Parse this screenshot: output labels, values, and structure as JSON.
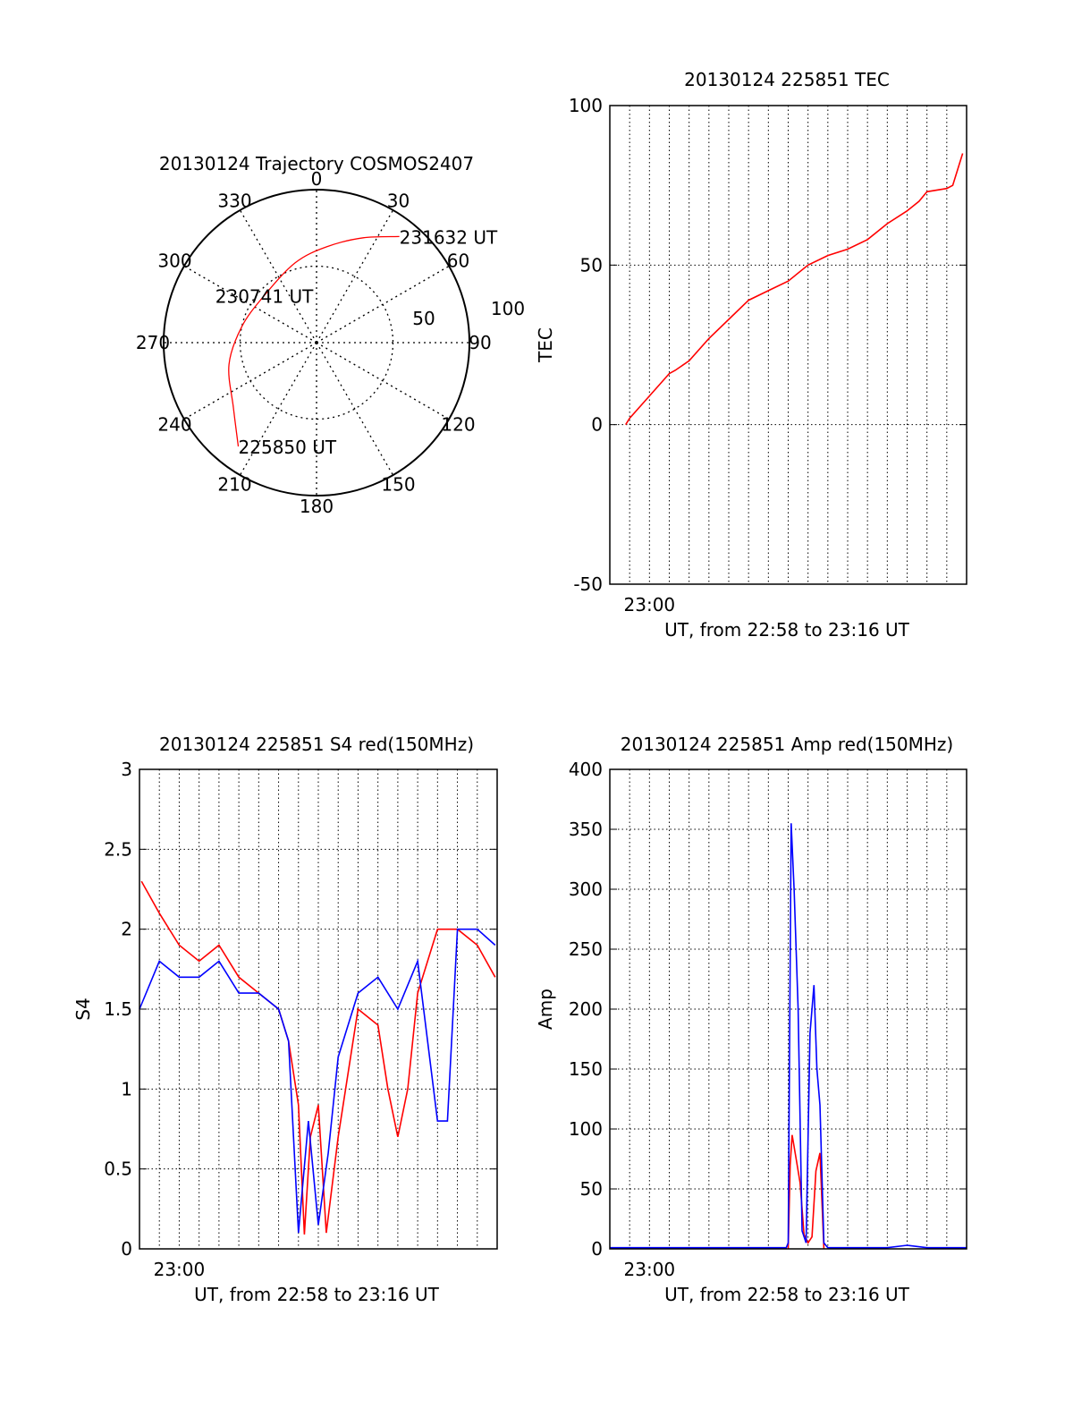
{
  "chart_data": [
    {
      "type": "polar",
      "title": "20130124 Trajectory COSMOS2407",
      "azimuth_labels": [
        "0",
        "30",
        "60",
        "90",
        "120",
        "150",
        "180",
        "210",
        "240",
        "270",
        "300",
        "330"
      ],
      "radial_labels": [
        "50",
        "100"
      ],
      "grid": true,
      "series": [
        {
          "color": "#ff0000",
          "points": [
            {
              "az": 217,
              "el": 15,
              "label": "225850 UT"
            },
            {
              "az": 232,
              "el": 31
            },
            {
              "az": 256,
              "el": 41
            },
            {
              "az": 282,
              "el": 50
            },
            {
              "az": 312,
              "el": 54,
              "label": "230741 UT"
            },
            {
              "az": 345,
              "el": 46
            },
            {
              "az": 6,
              "el": 37
            },
            {
              "az": 24,
              "el": 25
            },
            {
              "az": 38,
              "el": 12,
              "label": "231632 UT"
            }
          ]
        }
      ]
    },
    {
      "type": "line",
      "title": "20130124 225851 TEC",
      "xlabel": "UT, from 22:58 to 23:16 UT",
      "ylabel": "TEC",
      "x_tick_labels": [
        "23:00"
      ],
      "y_ticks": [
        "100",
        "50",
        "0",
        "-50"
      ],
      "ylim": [
        -50,
        100
      ],
      "grid": true,
      "series": [
        {
          "color": "#ff0000",
          "x": [
            0.8,
            1.0,
            2.0,
            3.0,
            3.3,
            4.0,
            5.0,
            6.0,
            7.0,
            8.0,
            9.0,
            10.0,
            11.0,
            12.0,
            13.0,
            14.0,
            15.0,
            15.6,
            16.0,
            17.0,
            17.3,
            17.8
          ],
          "y": [
            0,
            2,
            9,
            16,
            17,
            20,
            27,
            33,
            39,
            42,
            45,
            50,
            53,
            55,
            58,
            63,
            67,
            70,
            73,
            74,
            75,
            85
          ]
        }
      ]
    },
    {
      "type": "line",
      "title": "20130124 225851 S4 red(150MHz)",
      "xlabel": "UT, from 22:58 to 23:16 UT",
      "ylabel": "S4",
      "x_tick_labels": [
        "23:00"
      ],
      "y_ticks": [
        "3",
        "2.5",
        "2",
        "1.5",
        "1",
        "0.5",
        "0"
      ],
      "ylim": [
        0,
        3
      ],
      "grid": true,
      "series": [
        {
          "color": "#ff0000",
          "x": [
            0.1,
            1,
            2,
            3,
            4,
            5,
            6,
            7,
            7.5,
            8,
            8.3,
            8.6,
            9,
            9.4,
            10,
            11,
            12,
            12.5,
            13,
            13.5,
            14,
            15,
            16,
            17,
            17.9
          ],
          "y": [
            2.3,
            2.1,
            1.9,
            1.8,
            1.9,
            1.7,
            1.6,
            1.5,
            1.3,
            0.9,
            0.09,
            0.7,
            0.9,
            0.1,
            0.7,
            1.5,
            1.4,
            1.0,
            0.7,
            1.0,
            1.6,
            2.0,
            2.0,
            1.9,
            1.7
          ]
        },
        {
          "color": "#0000ff",
          "x": [
            0,
            1,
            2,
            3,
            4,
            5,
            6,
            7,
            7.5,
            8,
            8.5,
            9,
            9.5,
            10,
            11,
            12,
            13,
            14,
            15,
            15.5,
            16,
            17,
            17.9
          ],
          "y": [
            1.5,
            1.8,
            1.7,
            1.7,
            1.8,
            1.6,
            1.6,
            1.5,
            1.3,
            0.1,
            0.8,
            0.15,
            0.6,
            1.2,
            1.6,
            1.7,
            1.5,
            1.8,
            0.8,
            0.8,
            2.0,
            2.0,
            1.9
          ]
        }
      ]
    },
    {
      "type": "line",
      "title": "20130124 225851 Amp red(150MHz)",
      "xlabel": "UT, from 22:58 to 23:16 UT",
      "ylabel": "Amp",
      "x_tick_labels": [
        "23:00"
      ],
      "y_ticks": [
        "400",
        "350",
        "300",
        "250",
        "200",
        "150",
        "100",
        "50",
        "0"
      ],
      "ylim": [
        0,
        400
      ],
      "grid": true,
      "series": [
        {
          "color": "#ff0000",
          "x": [
            9.0,
            9.1,
            9.2,
            9.4,
            9.6,
            9.8,
            10.0,
            10.2,
            10.4,
            10.6,
            10.8
          ],
          "y": [
            0,
            70,
            95,
            75,
            55,
            12,
            5,
            10,
            65,
            80,
            0
          ]
        },
        {
          "color": "#0000ff",
          "x": [
            0,
            8.9,
            9.0,
            9.15,
            9.3,
            9.5,
            9.7,
            9.9,
            10.1,
            10.3,
            10.45,
            10.6,
            10.8,
            11.0,
            14.0,
            15.0,
            16.0,
            18.0
          ],
          "y": [
            1,
            1,
            5,
            355,
            300,
            200,
            15,
            5,
            180,
            220,
            150,
            120,
            5,
            1,
            1,
            3,
            1,
            1
          ]
        }
      ]
    }
  ]
}
